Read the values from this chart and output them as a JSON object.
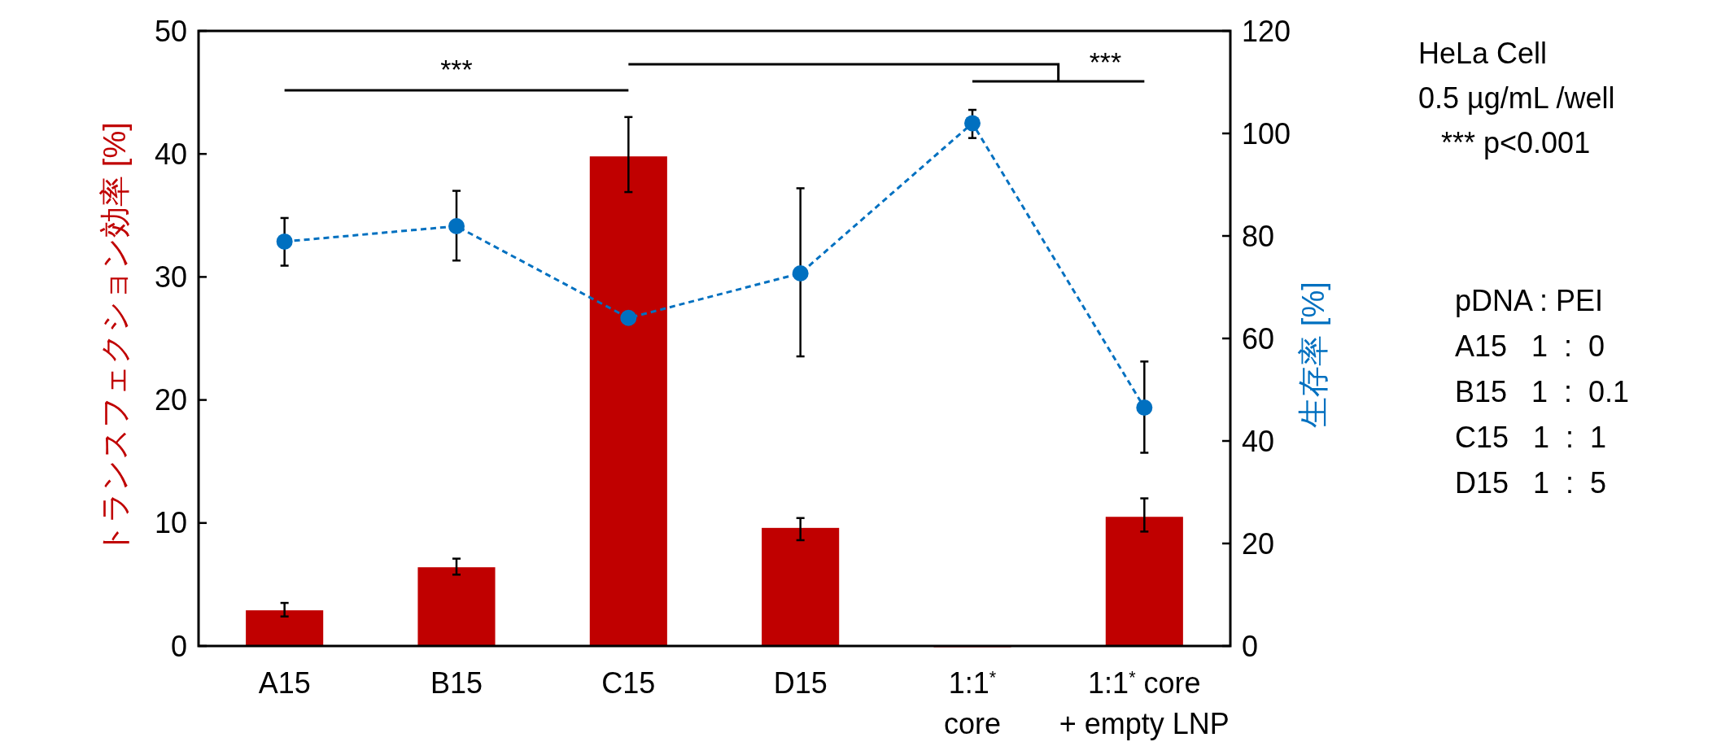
{
  "chart_data": {
    "type": "bar",
    "ylabel": "トランスフェクション効率 [%]",
    "y2label": "生存率 [%]",
    "categories": [
      "A15",
      "B15",
      "C15",
      "D15",
      "1:1$^{*}$\ncore",
      "1:1$^{*}$ core\n+ empty LNP"
    ],
    "ylim": [
      0,
      50
    ],
    "yticks": [
      0,
      10,
      20,
      30,
      40,
      50
    ],
    "y2lim": [
      0,
      120
    ],
    "y2ticks": [
      0,
      20,
      40,
      60,
      80,
      100,
      120
    ],
    "series": [
      {
        "color": "#c00000",
        "values": [
          2.9,
          6.4,
          39.8,
          9.6,
          0,
          10.5
        ],
        "errors": [
          [
            2.4,
            3.5
          ],
          [
            5.8,
            7.1
          ],
          [
            36.9,
            43.0
          ],
          [
            8.6,
            10.4
          ],
          null,
          [
            9.3,
            12.0
          ]
        ]
      },
      {
        "type": "line",
        "axis": "y2",
        "color": "#0070c0",
        "values": [
          78.9,
          81.9,
          64.0,
          72.7,
          102.0,
          46.5
        ],
        "errors": [
          [
            74.2,
            83.5
          ],
          [
            75.2,
            88.8
          ],
          null,
          [
            56.5,
            89.3
          ],
          [
            99.1,
            104.6
          ],
          [
            37.7,
            55.5
          ]
        ],
        "marker": "circle",
        "line_style": "dashed"
      }
    ],
    "grid": false,
    "annotations": [
      "***",
      "***",
      "HeLa Cell",
      "0.5 µg/mL /well",
      "*** p<0.001",
      "pDNA : PEI",
      "A15   1  :  0",
      "B15   1  :  0.1",
      "C15   1  :  1",
      "D15   1  :  5"
    ]
  }
}
